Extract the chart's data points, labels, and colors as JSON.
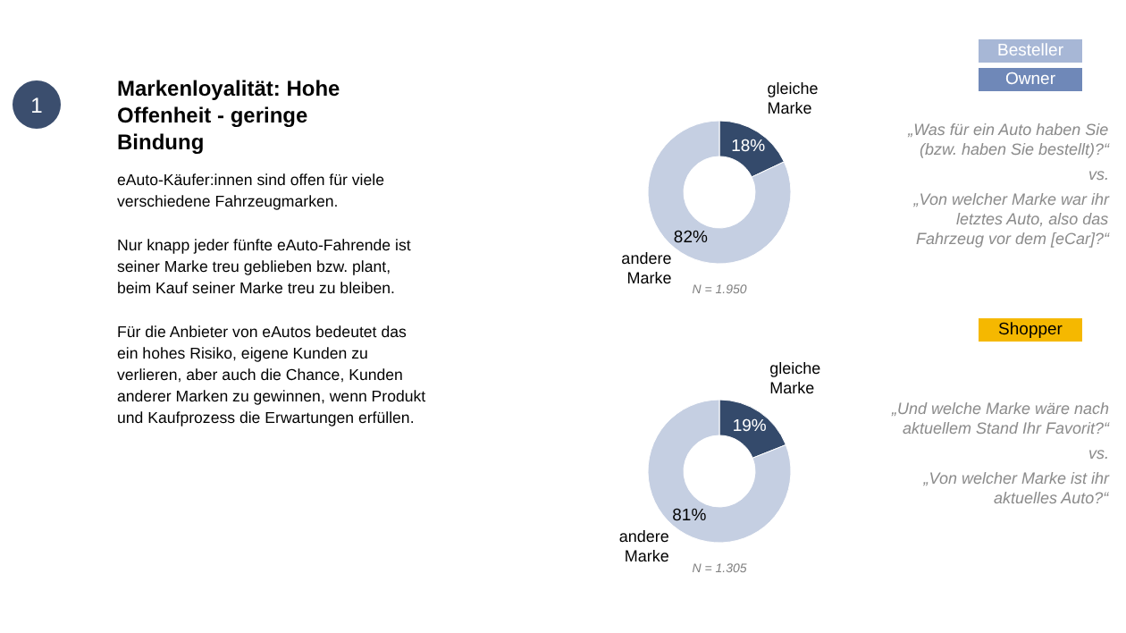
{
  "chart_data": [
    {
      "type": "other",
      "title": "Markenloyalität: Hohe Offenheit - geringe Bindung",
      "annotations": [
        "1",
        "eAuto-Käufer:innen sind offen für viele verschiedene Fahrzeugmarken.",
        "Nur knapp jeder fünfte eAuto-Fahrende ist seiner Marke treu geblieben bzw. plant, beim Kauf seiner Marke treu zu bleiben.",
        "Für die Anbieter von eAutos bedeutet das ein hohes Risiko, eigene Kunden zu verlieren, aber auch die Chance, Kunden anderer Marken zu gewinnen, wenn Produkt und Kaufprozess die Erwartungen erfüllen."
      ]
    },
    {
      "type": "donut",
      "title": "Besteller",
      "subtitle": "Owner",
      "categories": [
        "gleiche Marke",
        "andere Marke"
      ],
      "values": [
        18,
        82
      ],
      "colors": [
        "#344a6b",
        "#c5cfe2"
      ],
      "value_labels": [
        "18%",
        "82%"
      ],
      "annotations": [
        "„Was für ein Auto haben Sie (bzw. haben Sie bestellt)?“",
        "vs.",
        "„Von welcher Marke war ihr letztes Auto, also das Fahrzeug vor dem [eCar]?“",
        "N = 1.950"
      ]
    },
    {
      "type": "donut",
      "title": "Shopper",
      "categories": [
        "gleiche Marke",
        "andere Marke"
      ],
      "values": [
        19,
        81
      ],
      "colors": [
        "#344a6b",
        "#c5cfe2"
      ],
      "value_labels": [
        "19%",
        "81%"
      ],
      "annotations": [
        "„Und welche Marke wäre nach aktuellem Stand Ihr Favorit?“",
        "vs.",
        "„Von welcher Marke ist ihr aktuelles Auto?“",
        "N = 1.305"
      ]
    }
  ]
}
